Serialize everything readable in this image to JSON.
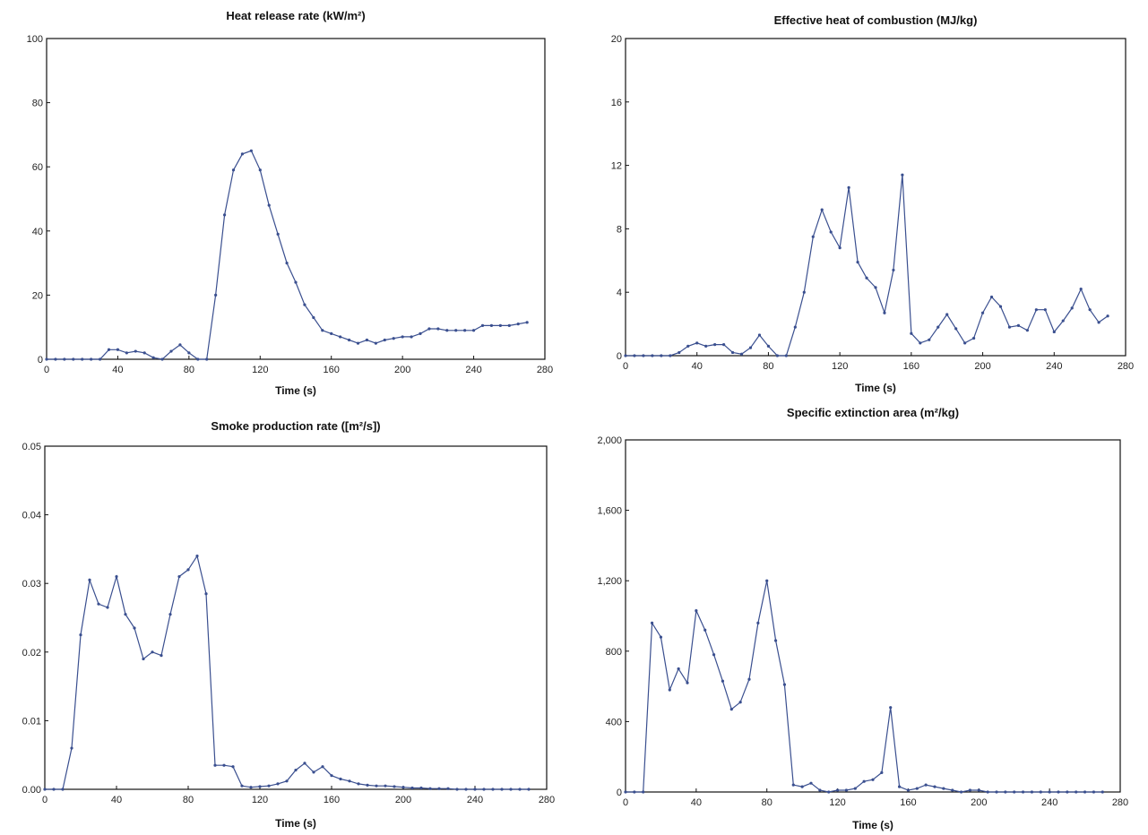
{
  "chart_data": [
    {
      "type": "line",
      "title": "Heat release rate (kW/m²)",
      "xlabel": "Time (s)",
      "ylabel": "",
      "xlim": [
        0,
        280
      ],
      "ylim": [
        0,
        100
      ],
      "x_ticks": [
        0,
        40,
        80,
        120,
        160,
        200,
        240,
        280
      ],
      "y_ticks": [
        0,
        20,
        40,
        60,
        80,
        100
      ],
      "y_tick_labels": [
        "0",
        "20",
        "40",
        "60",
        "80",
        "100"
      ],
      "grid": false,
      "series": [
        {
          "color": "#3a4f8f",
          "x": [
            0,
            5,
            10,
            15,
            20,
            25,
            30,
            35,
            40,
            45,
            50,
            55,
            60,
            65,
            70,
            75,
            80,
            85,
            90,
            95,
            100,
            105,
            110,
            115,
            120,
            125,
            130,
            135,
            140,
            145,
            150,
            155,
            160,
            165,
            170,
            175,
            180,
            185,
            190,
            195,
            200,
            205,
            210,
            215,
            220,
            225,
            230,
            235,
            240,
            245,
            250,
            255,
            260,
            265,
            270
          ],
          "y": [
            0,
            0,
            0,
            0,
            0,
            0,
            0,
            3,
            3,
            2,
            2.5,
            2,
            0.5,
            0,
            2.5,
            4.5,
            2,
            0,
            0,
            20,
            45,
            59,
            64,
            65,
            59,
            48,
            39,
            30,
            24,
            17,
            13,
            9,
            8,
            7,
            6,
            5,
            6,
            5,
            6,
            6.5,
            7,
            7,
            8,
            9.5,
            9.5,
            9,
            9,
            9,
            9,
            10.5,
            10.5,
            10.5,
            10.5,
            11,
            11.5
          ]
        }
      ]
    },
    {
      "type": "line",
      "title": "Effective heat of combustion (MJ/kg)",
      "xlabel": "Time (s)",
      "ylabel": "",
      "xlim": [
        0,
        280
      ],
      "ylim": [
        0,
        20
      ],
      "x_ticks": [
        0,
        40,
        80,
        120,
        160,
        200,
        240,
        280
      ],
      "y_ticks": [
        0,
        4,
        8,
        12,
        16,
        20
      ],
      "y_tick_labels": [
        "0",
        "4",
        "8",
        "12",
        "16",
        "20"
      ],
      "grid": false,
      "series": [
        {
          "color": "#3a4f8f",
          "x": [
            0,
            5,
            10,
            15,
            20,
            25,
            30,
            35,
            40,
            45,
            50,
            55,
            60,
            65,
            70,
            75,
            80,
            85,
            90,
            95,
            100,
            105,
            110,
            115,
            120,
            125,
            130,
            135,
            140,
            145,
            150,
            155,
            160,
            165,
            170,
            175,
            180,
            185,
            190,
            195,
            200,
            205,
            210,
            215,
            220,
            225,
            230,
            235,
            240,
            245,
            250,
            255,
            260,
            265,
            270
          ],
          "y": [
            0,
            0,
            0,
            0,
            0,
            0,
            0.2,
            0.6,
            0.8,
            0.6,
            0.7,
            0.7,
            0.2,
            0.1,
            0.5,
            1.3,
            0.6,
            0,
            0,
            1.8,
            4,
            7.5,
            9.2,
            7.8,
            6.8,
            10.6,
            5.9,
            4.9,
            4.3,
            2.7,
            5.4,
            11.4,
            1.4,
            0.8,
            1,
            1.8,
            2.6,
            1.7,
            0.8,
            1.1,
            2.7,
            3.7,
            3.1,
            1.8,
            1.9,
            1.6,
            2.9,
            2.9,
            1.5,
            2.2,
            3.0,
            4.2,
            2.9,
            2.1,
            2.5
          ]
        }
      ]
    },
    {
      "type": "line",
      "title": "Smoke production rate ([m²/s])",
      "xlabel": "Time (s)",
      "ylabel": "",
      "xlim": [
        0,
        280
      ],
      "ylim": [
        0,
        0.05
      ],
      "x_ticks": [
        0,
        40,
        80,
        120,
        160,
        200,
        240,
        280
      ],
      "y_ticks": [
        0,
        0.01,
        0.02,
        0.03,
        0.04,
        0.05
      ],
      "y_tick_labels": [
        "0.00",
        "0.01",
        "0.02",
        "0.03",
        "0.04",
        "0.05"
      ],
      "grid": false,
      "series": [
        {
          "color": "#3a4f8f",
          "x": [
            0,
            5,
            10,
            15,
            20,
            25,
            30,
            35,
            40,
            45,
            50,
            55,
            60,
            65,
            70,
            75,
            80,
            85,
            90,
            95,
            100,
            105,
            110,
            115,
            120,
            125,
            130,
            135,
            140,
            145,
            150,
            155,
            160,
            165,
            170,
            175,
            180,
            185,
            190,
            195,
            200,
            205,
            210,
            215,
            220,
            225,
            230,
            235,
            240,
            245,
            250,
            255,
            260,
            265,
            270
          ],
          "y": [
            0,
            0,
            0,
            0.006,
            0.0225,
            0.0305,
            0.027,
            0.0265,
            0.031,
            0.0255,
            0.0235,
            0.019,
            0.02,
            0.0195,
            0.0255,
            0.031,
            0.032,
            0.034,
            0.0285,
            0.0035,
            0.0035,
            0.0033,
            0.0005,
            0.0003,
            0.0004,
            0.0005,
            0.0008,
            0.0012,
            0.0028,
            0.0038,
            0.0025,
            0.0033,
            0.002,
            0.0015,
            0.0012,
            0.0008,
            0.0006,
            0.0005,
            0.0005,
            0.0004,
            0.0003,
            0.0002,
            0.0002,
            0.0001,
            0.0001,
            0.0001,
            0,
            0,
            0,
            0,
            0,
            0,
            0,
            0,
            0
          ]
        }
      ]
    },
    {
      "type": "line",
      "title": "Specific extinction area (m²/kg)",
      "xlabel": "Time (s)",
      "ylabel": "",
      "xlim": [
        0,
        280
      ],
      "ylim": [
        0,
        2000
      ],
      "x_ticks": [
        0,
        40,
        80,
        120,
        160,
        200,
        240,
        280
      ],
      "y_ticks": [
        0,
        400,
        800,
        1200,
        1600,
        2000
      ],
      "y_tick_labels": [
        "0",
        "400",
        "800",
        "1,200",
        "1,600",
        "2,000"
      ],
      "grid": false,
      "series": [
        {
          "color": "#3a4f8f",
          "x": [
            0,
            5,
            10,
            15,
            20,
            25,
            30,
            35,
            40,
            45,
            50,
            55,
            60,
            65,
            70,
            75,
            80,
            85,
            90,
            95,
            100,
            105,
            110,
            115,
            120,
            125,
            130,
            135,
            140,
            145,
            150,
            155,
            160,
            165,
            170,
            175,
            180,
            185,
            190,
            195,
            200,
            205,
            210,
            215,
            220,
            225,
            230,
            235,
            240,
            245,
            250,
            255,
            260,
            265,
            270
          ],
          "y": [
            0,
            0,
            0,
            960,
            880,
            580,
            700,
            620,
            1030,
            920,
            780,
            630,
            470,
            510,
            640,
            960,
            1200,
            860,
            610,
            40,
            30,
            50,
            10,
            0,
            10,
            10,
            20,
            60,
            70,
            110,
            480,
            30,
            10,
            20,
            40,
            30,
            20,
            10,
            0,
            10,
            10,
            0,
            0,
            0,
            0,
            0,
            0,
            0,
            0,
            0,
            0,
            0,
            0,
            0,
            0
          ]
        }
      ]
    }
  ]
}
